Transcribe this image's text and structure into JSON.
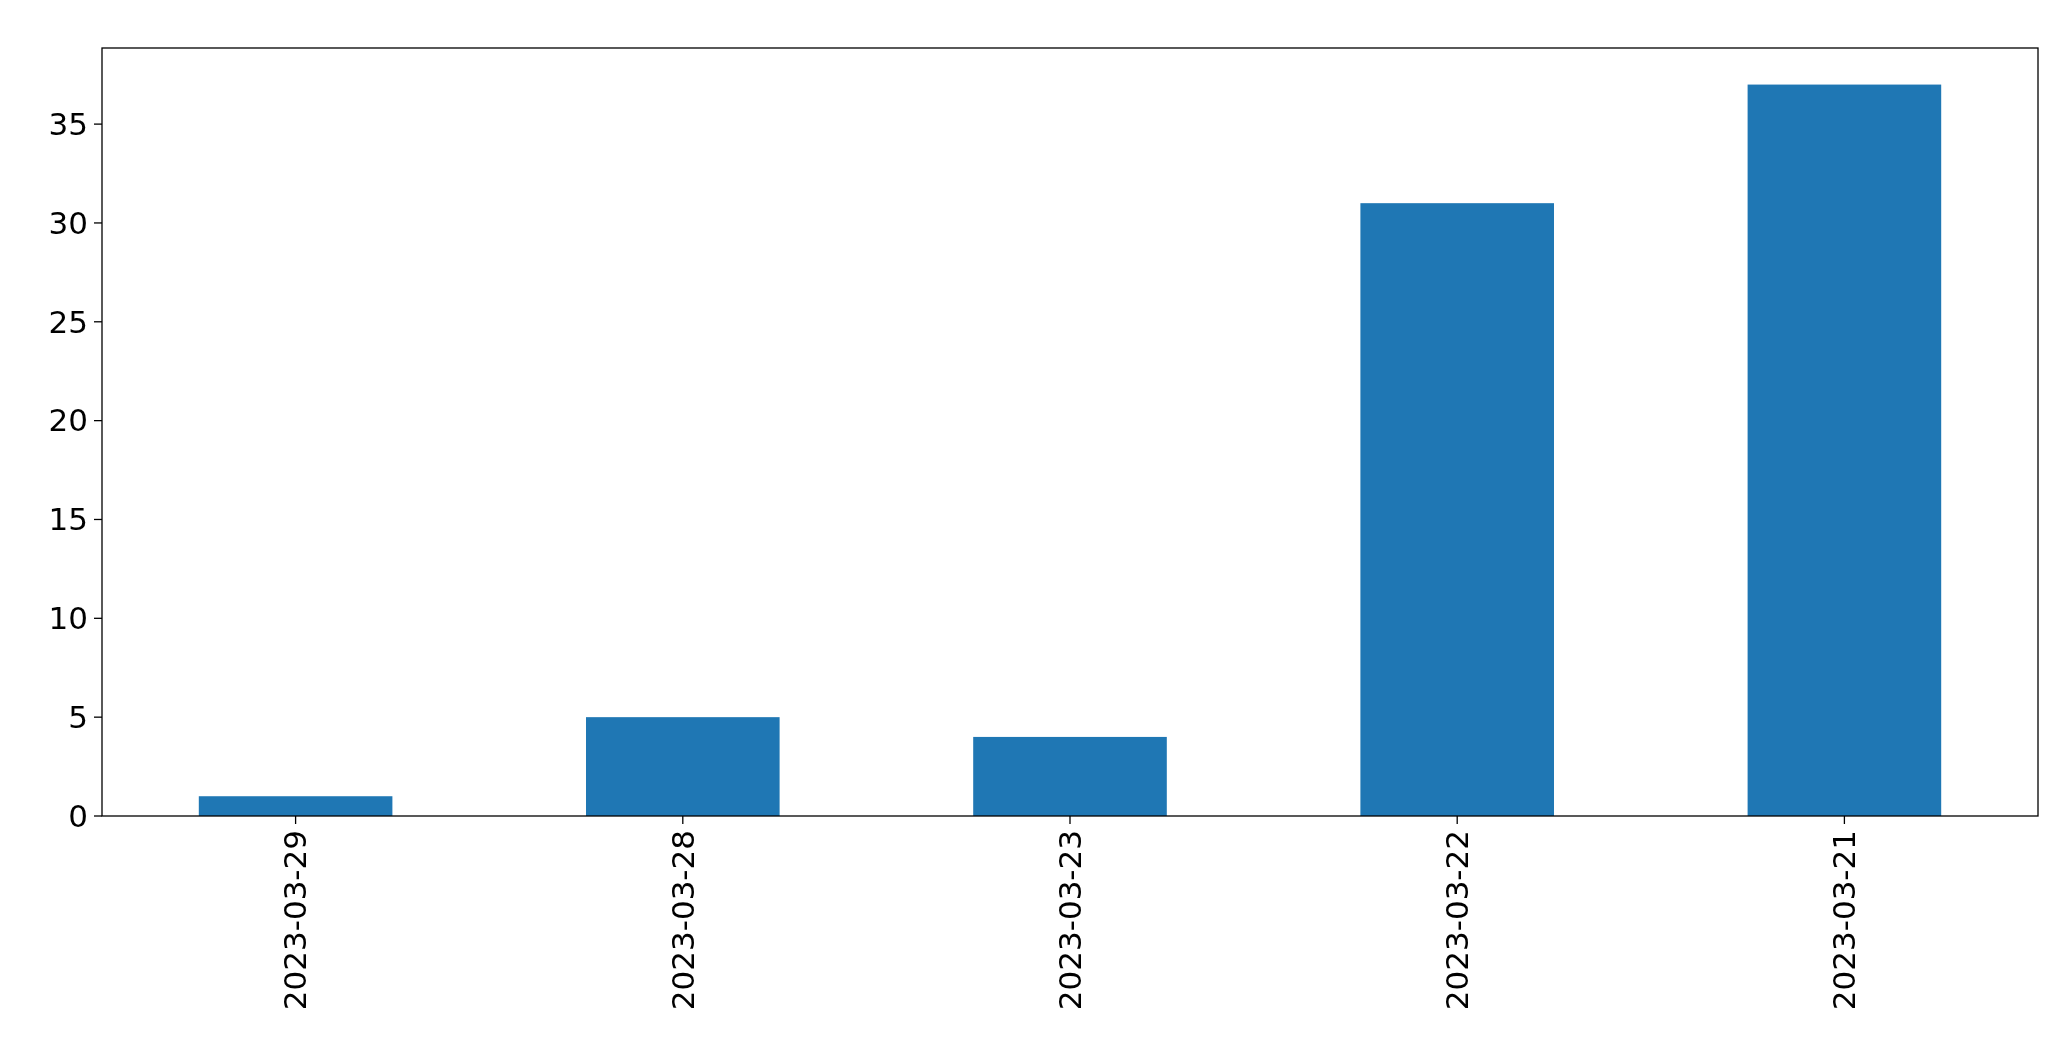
{
  "chart_data": {
    "type": "bar",
    "categories": [
      "2023-03-29",
      "2023-03-28",
      "2023-03-23",
      "2023-03-22",
      "2023-03-21"
    ],
    "values": [
      1,
      5,
      4,
      31,
      37
    ],
    "color": "#1f77b4",
    "ylim": [
      0,
      38.85
    ],
    "yticks": [
      0,
      5,
      10,
      15,
      20,
      25,
      30,
      35
    ],
    "grid": false
  }
}
